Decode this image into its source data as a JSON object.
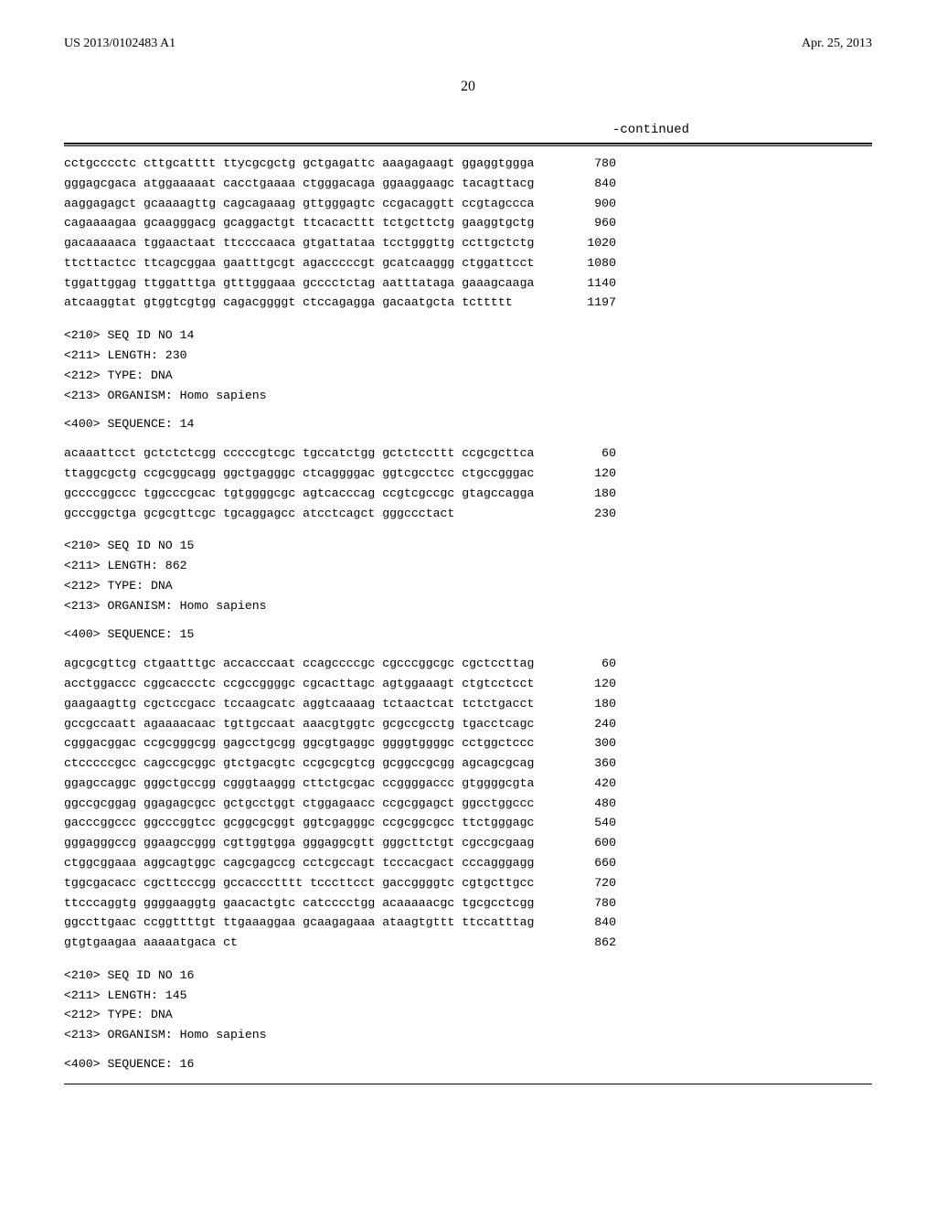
{
  "header": {
    "pub_number": "US 2013/0102483 A1",
    "pub_date": "Apr. 25, 2013"
  },
  "page_number": "20",
  "continued_label": "-continued",
  "sequences": [
    {
      "id": null,
      "lines": [
        {
          "text": "cctgcccctc cttgcatttt ttycgcgctg gctgagattc aaagagaagt ggaggtggga",
          "pos": "780"
        },
        {
          "text": "gggagcgaca atggaaaaat cacctgaaaa ctgggacaga ggaaggaagc tacagttacg",
          "pos": "840"
        },
        {
          "text": "aaggagagct gcaaaagttg cagcagaaag gttgggagtc ccgacaggtt ccgtagccca",
          "pos": "900"
        },
        {
          "text": "cagaaaagaa gcaagggacg gcaggactgt ttcacacttt tctgcttctg gaaggtgctg",
          "pos": "960"
        },
        {
          "text": "gacaaaaaca tggaactaat ttccccaaca gtgattataa tcctgggttg ccttgctctg",
          "pos": "1020"
        },
        {
          "text": "ttcttactcc ttcagcggaa gaatttgcgt agacccccgt gcatcaaggg ctggattcct",
          "pos": "1080"
        },
        {
          "text": "tggattggag ttggatttga gtttgggaaa gcccctctag aatttataga gaaagcaaga",
          "pos": "1140"
        },
        {
          "text": "atcaaggtat gtggtcgtgg cagacggggt ctccagagga gacaatgcta tcttttt",
          "pos": "1197"
        }
      ]
    },
    {
      "id": "14",
      "meta": [
        "<210> SEQ ID NO 14",
        "<211> LENGTH: 230",
        "<212> TYPE: DNA",
        "<213> ORGANISM: Homo sapiens"
      ],
      "header": "<400> SEQUENCE: 14",
      "lines": [
        {
          "text": "acaaattcct gctctctcgg cccccgtcgc tgccatctgg gctctccttt ccgcgcttca",
          "pos": "60"
        },
        {
          "text": "ttaggcgctg ccgcggcagg ggctgagggc ctcaggggac ggtcgcctcc ctgccgggac",
          "pos": "120"
        },
        {
          "text": "gccccggccc tggcccgcac tgtggggcgc agtcacccag ccgtcgccgc gtagccagga",
          "pos": "180"
        },
        {
          "text": "gcccggctga gcgcgttcgc tgcaggagcc atcctcagct gggccctact",
          "pos": "230"
        }
      ]
    },
    {
      "id": "15",
      "meta": [
        "<210> SEQ ID NO 15",
        "<211> LENGTH: 862",
        "<212> TYPE: DNA",
        "<213> ORGANISM: Homo sapiens"
      ],
      "header": "<400> SEQUENCE: 15",
      "lines": [
        {
          "text": "agcgcgttcg ctgaatttgc accacccaat ccagccccgc cgcccggcgc cgctccttag",
          "pos": "60"
        },
        {
          "text": "acctggaccc cggcaccctc ccgccggggc cgcacttagc agtggaaagt ctgtcctcct",
          "pos": "120"
        },
        {
          "text": "gaagaagttg cgctccgacc tccaagcatc aggtcaaaag tctaactcat tctctgacct",
          "pos": "180"
        },
        {
          "text": "gccgccaatt agaaaacaac tgttgccaat aaacgtggtc gcgccgcctg tgacctcagc",
          "pos": "240"
        },
        {
          "text": "cgggacggac ccgcgggcgg gagcctgcgg ggcgtgaggc ggggtggggc cctggctccc",
          "pos": "300"
        },
        {
          "text": "ctcccccgcc cagccgcggc gtctgacgtc ccgcgcgtcg gcggccgcgg agcagcgcag",
          "pos": "360"
        },
        {
          "text": "ggagccaggc gggctgccgg cgggtaaggg cttctgcgac ccggggaccc gtggggcgta",
          "pos": "420"
        },
        {
          "text": "ggccgcggag ggagagcgcc gctgcctggt ctggagaacc ccgcggagct ggcctggccc",
          "pos": "480"
        },
        {
          "text": "gacccggccc ggcccggtcc gcggcgcggt ggtcgagggc ccgcggcgcc ttctgggagc",
          "pos": "540"
        },
        {
          "text": "gggagggccg ggaagccggg cgttggtgga gggaggcgtt gggcttctgt cgccgcgaag",
          "pos": "600"
        },
        {
          "text": "ctggcggaaa aggcagtggc cagcgagccg cctcgccagt tcccacgact cccagggagg",
          "pos": "660"
        },
        {
          "text": "tggcgacacc cgcttcccgg gccaccctttt tcccttcct gaccggggtc cgtgcttgcc",
          "pos": "720"
        },
        {
          "text": "ttcccaggtg ggggaaggtg gaacactgtc catcccctgg acaaaaacgc tgcgcctcgg",
          "pos": "780"
        },
        {
          "text": "ggccttgaac ccggttttgt ttgaaaggaa gcaagagaaa ataagtgttt ttccatttag",
          "pos": "840"
        },
        {
          "text": "gtgtgaagaa aaaaatgaca ct",
          "pos": "862"
        }
      ]
    },
    {
      "id": "16",
      "meta": [
        "<210> SEQ ID NO 16",
        "<211> LENGTH: 145",
        "<212> TYPE: DNA",
        "<213> ORGANISM: Homo sapiens"
      ],
      "header": "<400> SEQUENCE: 16",
      "lines": []
    }
  ]
}
